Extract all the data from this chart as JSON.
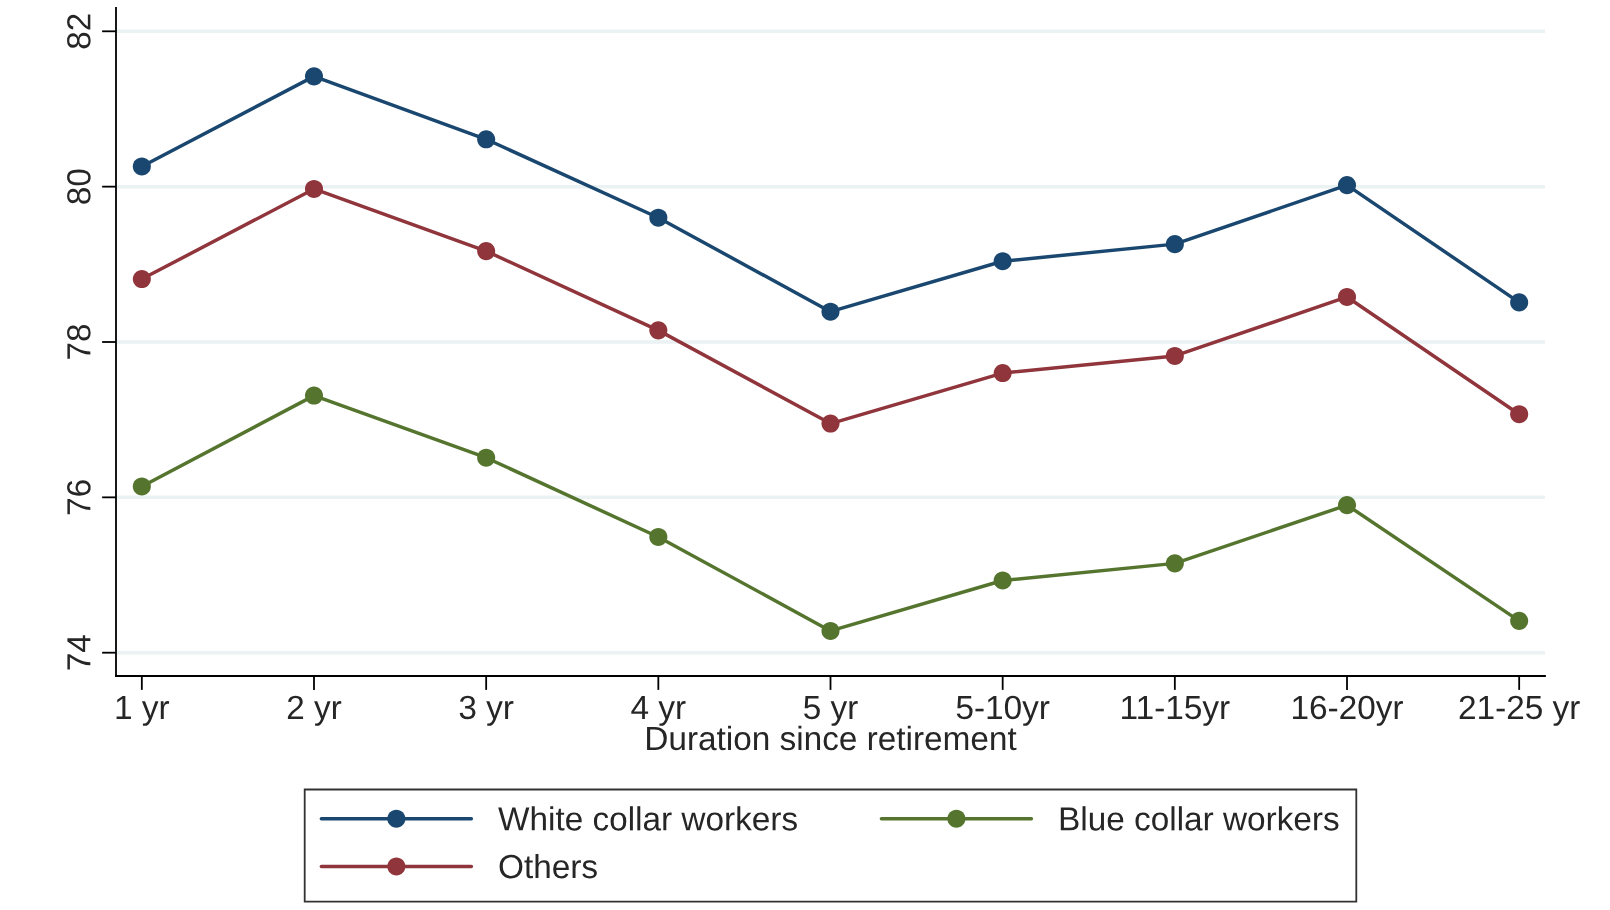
{
  "chart_data": {
    "type": "line",
    "xlabel": "Duration since retirement",
    "categories": [
      "1 yr",
      "2 yr",
      "3 yr",
      "4 yr",
      "5 yr",
      "5-10yr",
      "11-15yr",
      "16-20yr",
      "21-25 yr"
    ],
    "series": [
      {
        "name": "White collar workers",
        "color": "#1a476f",
        "values": [
          80.26,
          81.42,
          80.61,
          79.6,
          78.39,
          79.04,
          79.26,
          80.02,
          78.51
        ]
      },
      {
        "name": "Others",
        "color": "#90353b",
        "values": [
          78.81,
          79.97,
          79.17,
          78.15,
          76.95,
          77.6,
          77.82,
          78.58,
          77.07
        ]
      },
      {
        "name": "Blue collar workers",
        "color": "#55752f",
        "values": [
          76.14,
          77.31,
          76.51,
          75.49,
          74.28,
          74.93,
          75.15,
          75.9,
          74.41
        ]
      }
    ],
    "ylim": [
      73.7,
      82.3
    ],
    "yticks": [
      74,
      76,
      78,
      80,
      82
    ],
    "grid": "y",
    "legend": "bottom",
    "marker": "circle",
    "line_style": "solid"
  }
}
